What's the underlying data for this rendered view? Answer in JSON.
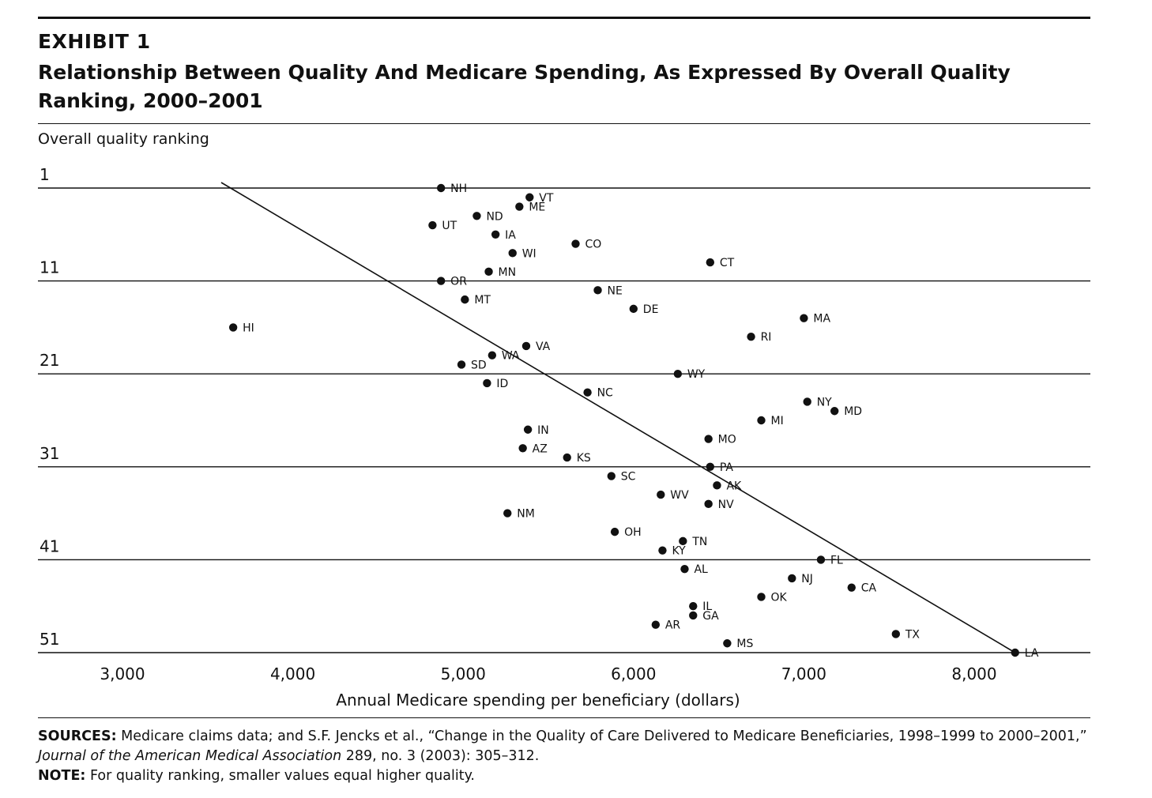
{
  "exhibit": "EXHIBIT 1",
  "title": "Relationship Between Quality And Medicare Spending, As Expressed By Overall Quality Ranking, 2000–2001",
  "chart_data": {
    "type": "scatter",
    "title": "Relationship Between Quality And Medicare Spending, As Expressed By Overall Quality Ranking, 2000–2001",
    "xlabel": "Annual Medicare spending per beneficiary (dollars)",
    "ylabel": "Overall quality ranking",
    "xlim": [
      2700,
      8700
    ],
    "ylim": [
      51,
      1
    ],
    "y_reversed": true,
    "xticks": [
      3000,
      4000,
      5000,
      6000,
      7000,
      8000
    ],
    "xtick_labels": [
      "3,000",
      "4,000",
      "5,000",
      "6,000",
      "7,000",
      "8,000"
    ],
    "yticks": [
      1,
      11,
      21,
      31,
      41,
      51
    ],
    "grid": "horizontal",
    "legend": "none",
    "points": [
      {
        "label": "NH",
        "x": 4870,
        "y": 1
      },
      {
        "label": "VT",
        "x": 5390,
        "y": 2
      },
      {
        "label": "ME",
        "x": 5330,
        "y": 3
      },
      {
        "label": "ND",
        "x": 5080,
        "y": 4
      },
      {
        "label": "UT",
        "x": 4820,
        "y": 5
      },
      {
        "label": "IA",
        "x": 5190,
        "y": 6
      },
      {
        "label": "CO",
        "x": 5660,
        "y": 7
      },
      {
        "label": "WI",
        "x": 5290,
        "y": 8
      },
      {
        "label": "CT",
        "x": 6450,
        "y": 9
      },
      {
        "label": "MN",
        "x": 5150,
        "y": 10
      },
      {
        "label": "OR",
        "x": 4870,
        "y": 11
      },
      {
        "label": "NE",
        "x": 5790,
        "y": 12
      },
      {
        "label": "MT",
        "x": 5010,
        "y": 13
      },
      {
        "label": "DE",
        "x": 6000,
        "y": 14
      },
      {
        "label": "MA",
        "x": 7000,
        "y": 15
      },
      {
        "label": "HI",
        "x": 3650,
        "y": 16
      },
      {
        "label": "RI",
        "x": 6690,
        "y": 17
      },
      {
        "label": "VA",
        "x": 5370,
        "y": 18
      },
      {
        "label": "WA",
        "x": 5170,
        "y": 19
      },
      {
        "label": "SD",
        "x": 4990,
        "y": 20
      },
      {
        "label": "WY",
        "x": 6260,
        "y": 21
      },
      {
        "label": "ID",
        "x": 5140,
        "y": 22
      },
      {
        "label": "NC",
        "x": 5730,
        "y": 23
      },
      {
        "label": "NY",
        "x": 7020,
        "y": 24
      },
      {
        "label": "MD",
        "x": 7180,
        "y": 25
      },
      {
        "label": "MI",
        "x": 6750,
        "y": 26
      },
      {
        "label": "IN",
        "x": 5380,
        "y": 27
      },
      {
        "label": "MO",
        "x": 6440,
        "y": 28
      },
      {
        "label": "AZ",
        "x": 5350,
        "y": 29
      },
      {
        "label": "KS",
        "x": 5610,
        "y": 30
      },
      {
        "label": "PA",
        "x": 6450,
        "y": 31
      },
      {
        "label": "SC",
        "x": 5870,
        "y": 32
      },
      {
        "label": "AK",
        "x": 6490,
        "y": 33
      },
      {
        "label": "WV",
        "x": 6160,
        "y": 34
      },
      {
        "label": "NV",
        "x": 6440,
        "y": 35
      },
      {
        "label": "NM",
        "x": 5260,
        "y": 36
      },
      {
        "label": "OH",
        "x": 5890,
        "y": 38
      },
      {
        "label": "TN",
        "x": 6290,
        "y": 39
      },
      {
        "label": "KY",
        "x": 6170,
        "y": 40
      },
      {
        "label": "FL",
        "x": 7100,
        "y": 41
      },
      {
        "label": "AL",
        "x": 6300,
        "y": 42
      },
      {
        "label": "NJ",
        "x": 6930,
        "y": 43
      },
      {
        "label": "CA",
        "x": 7280,
        "y": 44
      },
      {
        "label": "OK",
        "x": 6750,
        "y": 45
      },
      {
        "label": "IL",
        "x": 6350,
        "y": 46
      },
      {
        "label": "GA",
        "x": 6350,
        "y": 47
      },
      {
        "label": "AR",
        "x": 6130,
        "y": 48
      },
      {
        "label": "TX",
        "x": 7540,
        "y": 49
      },
      {
        "label": "MS",
        "x": 6550,
        "y": 50
      },
      {
        "label": "LA",
        "x": 8240,
        "y": 51
      }
    ],
    "trend_line": {
      "x": [
        3650,
        8240
      ],
      "y": 0
    }
  },
  "ylabel_text": "Overall quality ranking",
  "xlabel_text": "Annual Medicare spending per beneficiary (dollars)",
  "notes": {
    "sources_label": "SOURCES:",
    "sources_text_1": " Medicare claims data; and S.F. Jencks et al., “Change in the Quality of Care Delivered to Medicare Beneficiaries, 1998–1999 to 2000–2001,” ",
    "sources_journal": "Journal of the American Medical Association",
    "sources_text_2": " 289, no. 3 (2003): 305–312.",
    "note_label": "NOTE:",
    "note_text": " For quality ranking, smaller values equal higher quality."
  }
}
